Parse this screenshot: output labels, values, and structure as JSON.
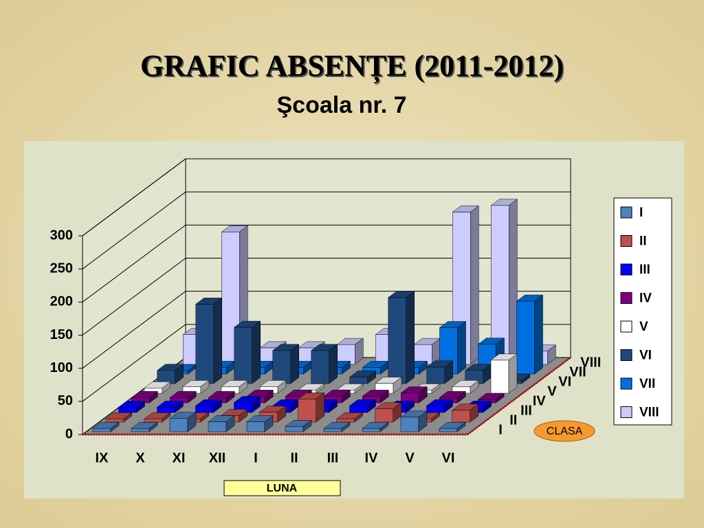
{
  "chart_data": {
    "type": "bar3d",
    "title": "GRAFIC ABSENȚE (2011-2012)",
    "subtitle": "Şcoala nr. 7",
    "x_label": "LUNA",
    "z_label": "CLASA",
    "categories": [
      "IX",
      "X",
      "XI",
      "XII",
      "I",
      "II",
      "III",
      "IV",
      "V",
      "VI"
    ],
    "series": [
      {
        "name": "I",
        "color": "#4f81bd",
        "values": [
          5,
          5,
          20,
          15,
          15,
          8,
          5,
          5,
          22,
          5
        ]
      },
      {
        "name": "II",
        "color": "#c0504d",
        "values": [
          5,
          5,
          5,
          10,
          15,
          35,
          5,
          20,
          5,
          18
        ]
      },
      {
        "name": "III",
        "color": "#0000ff",
        "values": [
          8,
          8,
          10,
          15,
          10,
          10,
          10,
          8,
          10,
          8
        ]
      },
      {
        "name": "IV",
        "color": "#800080",
        "values": [
          8,
          8,
          8,
          10,
          10,
          10,
          10,
          15,
          8,
          5
        ]
      },
      {
        "name": "V",
        "color": "#ffffff",
        "values": [
          8,
          10,
          10,
          10,
          5,
          5,
          15,
          5,
          10,
          50
        ]
      },
      {
        "name": "VI",
        "color": "#1f497d",
        "values": [
          20,
          120,
          85,
          50,
          50,
          10,
          130,
          25,
          20,
          5
        ]
      },
      {
        "name": "VII",
        "color": "#0070e0",
        "values": [
          5,
          10,
          10,
          10,
          10,
          10,
          10,
          70,
          45,
          110
        ]
      },
      {
        "name": "VIII",
        "color": "#ccccff",
        "values": [
          45,
          200,
          25,
          25,
          30,
          45,
          30,
          230,
          240,
          20
        ]
      }
    ],
    "ylim": [
      0,
      300
    ],
    "yticks": [
      0,
      50,
      100,
      150,
      200,
      250,
      300
    ],
    "grid": true
  }
}
